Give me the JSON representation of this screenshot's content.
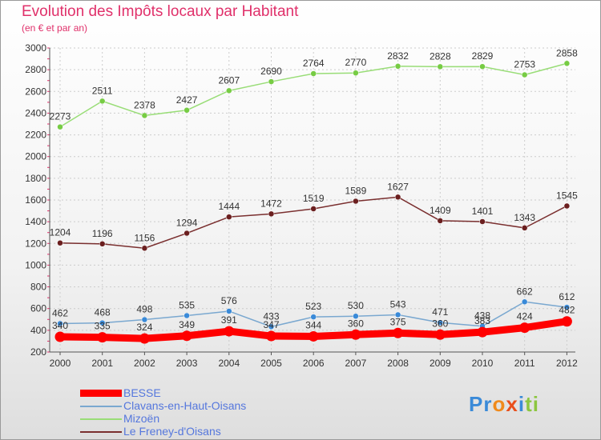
{
  "title": "Evolution des Impôts locaux par Habitant",
  "subtitle": "(en € et par an)",
  "chart_data": {
    "type": "line",
    "title": "Evolution des Impôts locaux par Habitant",
    "subtitle": "(en € et par an)",
    "xlabel": "",
    "ylabel": "",
    "ylim": [
      200,
      3000
    ],
    "yticks": [
      "200",
      "400",
      "600",
      "800",
      "1000",
      "1200",
      "1400",
      "1600",
      "1800",
      "2000",
      "2200",
      "2400",
      "2600",
      "2800",
      "3000"
    ],
    "categories": [
      "2000",
      "2001",
      "2002",
      "2003",
      "2004",
      "2005",
      "2006",
      "2007",
      "2008",
      "2009",
      "2010",
      "2011",
      "2012"
    ],
    "series": [
      {
        "name": "BESSE",
        "color": "#ff0000",
        "values": [
          340,
          335,
          324,
          349,
          391,
          347,
          344,
          360,
          375,
          360,
          383,
          424,
          482
        ],
        "labels": [
          "340",
          "335",
          "324",
          "349",
          "391",
          "347",
          "344",
          "360",
          "375",
          "360",
          "383",
          "424",
          "482"
        ]
      },
      {
        "name": "Clavans-en-Haut-Oisans",
        "color": "#7aa8d0",
        "marker": "#3a8ad8",
        "values": [
          462,
          468,
          498,
          535,
          576,
          433,
          523,
          530,
          543,
          471,
          438,
          662,
          612
        ],
        "labels": [
          "462",
          "468",
          "498",
          "535",
          "576",
          "433",
          "523",
          "530",
          "543",
          "471",
          "438",
          "662",
          "612"
        ]
      },
      {
        "name": "Mizoën",
        "color": "#99dd77",
        "marker": "#77cc44",
        "values": [
          2273,
          2511,
          2378,
          2427,
          2607,
          2690,
          2764,
          2770,
          2832,
          2828,
          2829,
          2753,
          2858
        ],
        "labels": [
          "2273",
          "2511",
          "2378",
          "2427",
          "2607",
          "2690",
          "2764",
          "2770",
          "2832",
          "2828",
          "2829",
          "2753",
          "2858"
        ]
      },
      {
        "name": "Le Freney-d'Oisans",
        "color": "#7a2f2f",
        "marker": "#6b1f1f",
        "values": [
          1204,
          1196,
          1156,
          1294,
          1444,
          1472,
          1519,
          1589,
          1627,
          1409,
          1401,
          1343,
          1545
        ],
        "labels": [
          "1204",
          "1196",
          "1156",
          "1294",
          "1444",
          "1472",
          "1519",
          "1589",
          "1627",
          "1409",
          "1401",
          "1343",
          "1545"
        ]
      }
    ]
  },
  "legend": [
    {
      "label": "BESSE",
      "color": "#ff0000"
    },
    {
      "label": "Clavans-en-Haut-Oisans",
      "color": "#7aa8d0"
    },
    {
      "label": "Mizoën",
      "color": "#99dd77"
    },
    {
      "label": "Le Freney-d'Oisans",
      "color": "#7a2f2f"
    }
  ],
  "logo": {
    "p1": "Pr",
    "p2": "o",
    "p3": "x",
    "p4": "i",
    "p5": "ti"
  }
}
